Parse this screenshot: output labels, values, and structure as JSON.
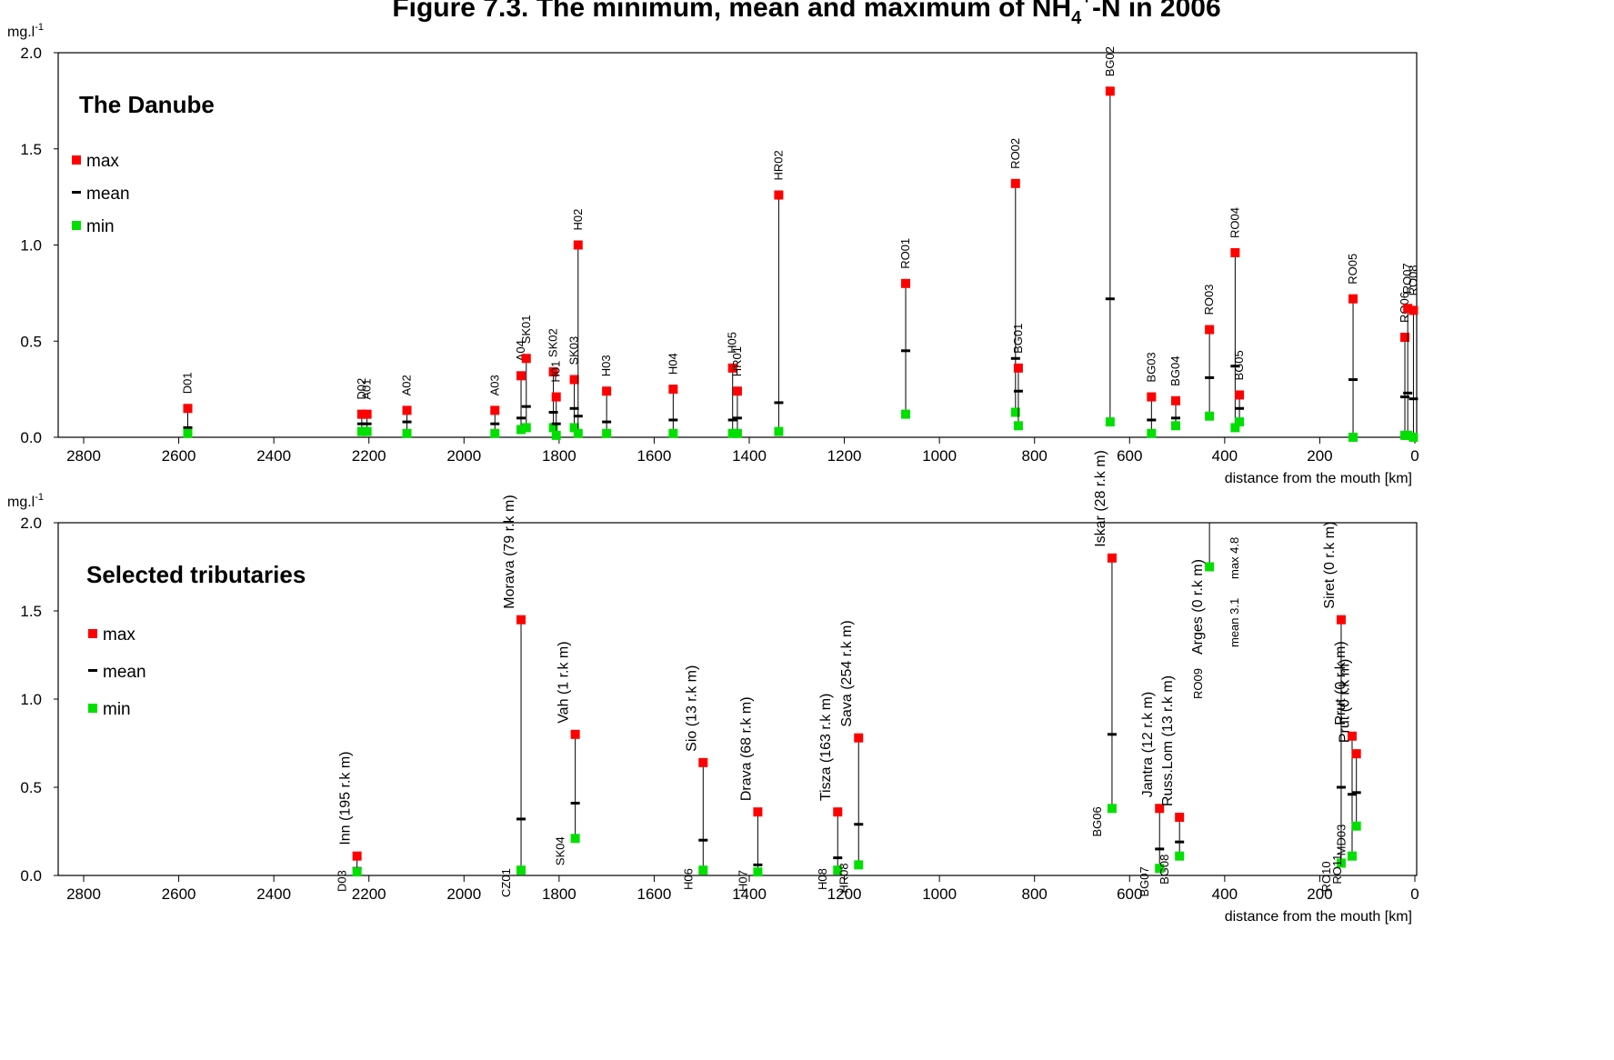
{
  "title_main": "Figure 7.3. The minimum, mean and maximum of NH",
  "title_sub": "4",
  "title_sup": "+",
  "title_end": "-N in 2006",
  "colors": {
    "max": "#ff0000",
    "min": "#00e000",
    "mean": "#000000",
    "line": "#000000"
  },
  "panels": [
    {
      "id": "danube",
      "title": "The Danube",
      "unit_base": "mg.l",
      "unit_sup": "-1",
      "xlabel": "distance from the mouth [km]",
      "legend": [
        {
          "key": "max",
          "label": "max"
        },
        {
          "key": "mean",
          "label": "mean"
        },
        {
          "key": "min",
          "label": "min"
        }
      ],
      "x_ticks": [
        "2800",
        "2600",
        "2400",
        "2200",
        "2000",
        "1800",
        "1600",
        "1400",
        "1200",
        "1000",
        "800",
        "600",
        "400",
        "200",
        "0"
      ],
      "y_ticks": [
        "0.0",
        "0.5",
        "1.0",
        "1.5",
        "2.0"
      ]
    },
    {
      "id": "tributaries",
      "title": "Selected tributaries",
      "unit_base": "mg.l",
      "unit_sup": "-1",
      "xlabel": "distance from the mouth  [km]",
      "legend": [
        {
          "key": "max",
          "label": "max"
        },
        {
          "key": "mean",
          "label": "mean"
        },
        {
          "key": "min",
          "label": "min"
        }
      ],
      "x_ticks": [
        "2800",
        "2600",
        "2400",
        "2200",
        "2000",
        "1800",
        "1600",
        "1400",
        "1200",
        "1000",
        "800",
        "600",
        "400",
        "200",
        "0"
      ],
      "y_ticks": [
        "0.0",
        "0.5",
        "1.0",
        "1.5",
        "2.0"
      ],
      "annotations": {
        "mean": "mean 3.1",
        "max": "max 4.8"
      }
    }
  ],
  "chart_data": [
    {
      "type": "scatter",
      "title": "The Danube",
      "xlabel": "distance from the mouth [km]",
      "ylabel": "mg.l-1",
      "xlim": [
        2800,
        0
      ],
      "ylim": [
        0,
        2.0
      ],
      "x_reversed": true,
      "legend": "top-left",
      "series": [
        {
          "name": "max"
        },
        {
          "name": "mean"
        },
        {
          "name": "min"
        }
      ],
      "stations": [
        {
          "code": "D01",
          "x": 2581,
          "min": 0.02,
          "mean": 0.05,
          "max": 0.15
        },
        {
          "code": "D02",
          "x": 2215,
          "min": 0.03,
          "mean": 0.07,
          "max": 0.12
        },
        {
          "code": "A01",
          "x": 2204,
          "min": 0.03,
          "mean": 0.07,
          "max": 0.12
        },
        {
          "code": "A02",
          "x": 2120,
          "min": 0.02,
          "mean": 0.08,
          "max": 0.14
        },
        {
          "code": "A03",
          "x": 1935,
          "min": 0.02,
          "mean": 0.07,
          "max": 0.14
        },
        {
          "code": "A04",
          "x": 1880,
          "min": 0.04,
          "mean": 0.1,
          "max": 0.32
        },
        {
          "code": "SK01",
          "x": 1869,
          "min": 0.05,
          "mean": 0.16,
          "max": 0.41
        },
        {
          "code": "SK02",
          "x": 1812,
          "min": 0.05,
          "mean": 0.13,
          "max": 0.34
        },
        {
          "code": "H01",
          "x": 1806,
          "min": 0.01,
          "mean": 0.07,
          "max": 0.21
        },
        {
          "code": "SK03",
          "x": 1768,
          "min": 0.05,
          "mean": 0.15,
          "max": 0.3
        },
        {
          "code": "H02",
          "x": 1760,
          "min": 0.02,
          "mean": 0.11,
          "max": 1.0
        },
        {
          "code": "H03",
          "x": 1700,
          "min": 0.02,
          "mean": 0.08,
          "max": 0.24
        },
        {
          "code": "H04",
          "x": 1560,
          "min": 0.02,
          "mean": 0.09,
          "max": 0.25
        },
        {
          "code": "H05",
          "x": 1435,
          "min": 0.02,
          "mean": 0.09,
          "max": 0.36
        },
        {
          "code": "HR01",
          "x": 1425,
          "min": 0.02,
          "mean": 0.1,
          "max": 0.24
        },
        {
          "code": "HR02",
          "x": 1338,
          "min": 0.03,
          "mean": 0.18,
          "max": 1.26
        },
        {
          "code": "RO01",
          "x": 1071,
          "min": 0.12,
          "mean": 0.45,
          "max": 0.8
        },
        {
          "code": "RO02",
          "x": 840,
          "min": 0.13,
          "mean": 0.41,
          "max": 1.32
        },
        {
          "code": "BG01",
          "x": 834,
          "min": 0.06,
          "mean": 0.24,
          "max": 0.36
        },
        {
          "code": "BG02",
          "x": 641,
          "min": 0.08,
          "mean": 0.72,
          "max": 1.8
        },
        {
          "code": "BG03",
          "x": 554,
          "min": 0.02,
          "mean": 0.09,
          "max": 0.21
        },
        {
          "code": "BG04",
          "x": 503,
          "min": 0.06,
          "mean": 0.1,
          "max": 0.19
        },
        {
          "code": "RO03",
          "x": 432,
          "min": 0.11,
          "mean": 0.31,
          "max": 0.56
        },
        {
          "code": "RO04",
          "x": 378,
          "min": 0.05,
          "mean": 0.37,
          "max": 0.96
        },
        {
          "code": "BG05",
          "x": 369,
          "min": 0.08,
          "mean": 0.15,
          "max": 0.22
        },
        {
          "code": "RO05",
          "x": 130,
          "min": 0.0,
          "mean": 0.3,
          "max": 0.72
        },
        {
          "code": "RO06",
          "x": 21,
          "min": 0.01,
          "mean": 0.21,
          "max": 0.52
        },
        {
          "code": "RO07",
          "x": 15,
          "min": 0.01,
          "mean": 0.23,
          "max": 0.67
        },
        {
          "code": "RO08",
          "x": 3,
          "min": 0.0,
          "mean": 0.2,
          "max": 0.66
        }
      ]
    },
    {
      "type": "scatter",
      "title": "Selected tributaries",
      "xlabel": "distance from the mouth  [km]",
      "ylabel": "mg.l-1",
      "xlim": [
        2800,
        0
      ],
      "ylim": [
        0,
        2.0
      ],
      "x_reversed": true,
      "legend": "top-left",
      "series": [
        {
          "name": "max"
        },
        {
          "name": "mean"
        },
        {
          "name": "min"
        }
      ],
      "stations": [
        {
          "code": "D03",
          "name": "Inn (195 r.k m)",
          "x": 2225,
          "min": 0.02,
          "mean": 0.04,
          "max": 0.11
        },
        {
          "code": "CZ01",
          "name": "Morava (79 r.k m)",
          "x": 1880,
          "min": 0.03,
          "mean": 0.32,
          "max": 1.45
        },
        {
          "code": "SK04",
          "name": "Vah (1 r.k m)",
          "x": 1766,
          "min": 0.21,
          "mean": 0.41,
          "max": 0.8
        },
        {
          "code": "H06",
          "name": "Sio (13 r.k m)",
          "x": 1497,
          "min": 0.03,
          "mean": 0.2,
          "max": 0.64
        },
        {
          "code": "H07",
          "name": "Drava (68 r.k m)",
          "x": 1382,
          "min": 0.02,
          "mean": 0.06,
          "max": 0.36
        },
        {
          "code": "H08",
          "name": "Tisza (163 r.k m)",
          "x": 1214,
          "min": 0.03,
          "mean": 0.1,
          "max": 0.36
        },
        {
          "code": "HR08",
          "name": "Sava (254 r.k m)",
          "x": 1170,
          "min": 0.06,
          "mean": 0.29,
          "max": 0.78
        },
        {
          "code": "BG06",
          "name": "Iskar (28 r.k m)",
          "x": 637,
          "min": 0.38,
          "mean": 0.8,
          "max": 1.8
        },
        {
          "code": "BG07",
          "name": "Jantra (12 r.k m)",
          "x": 537,
          "min": 0.04,
          "mean": 0.15,
          "max": 0.38
        },
        {
          "code": "BG08",
          "name": "Russ.Lom (13 r.k m)",
          "x": 495,
          "min": 0.11,
          "mean": 0.19,
          "max": 0.33
        },
        {
          "code": "RO09",
          "name": "Arges (0 r.k m)",
          "x": 432,
          "min": 1.75,
          "mean": 3.1,
          "max": 4.8,
          "off_scale": true
        },
        {
          "code": "RO10",
          "name": "Siret (0 r.k m)",
          "x": 155,
          "min": 0.07,
          "mean": 0.5,
          "max": 1.45
        },
        {
          "code": "RO11",
          "name": "Prut (0 r.k m)",
          "x": 132,
          "min": 0.11,
          "mean": 0.46,
          "max": 0.79
        },
        {
          "code": "MD03",
          "name": "Prut (0 r.k m)",
          "x": 123,
          "min": 0.28,
          "mean": 0.47,
          "max": 0.69
        }
      ]
    }
  ]
}
